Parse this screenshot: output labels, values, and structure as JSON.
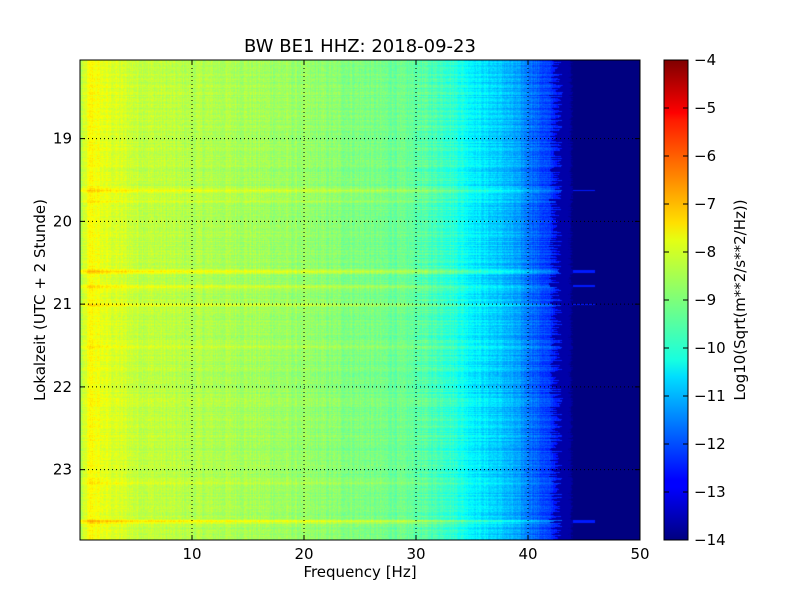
{
  "chart_data": {
    "type": "heatmap",
    "title": "BW BE1 HHZ: 2018-09-23",
    "xlabel": "Frequency [Hz]",
    "ylabel": "Lokalzeit (UTC + 2 Stunde)",
    "colorbar_label": "Log10(Sqrt(m**2/s**2/Hz))",
    "colormap": "jet",
    "xlim": [
      0,
      50
    ],
    "ylim": [
      18.05,
      23.85
    ],
    "y_inverted": true,
    "clim": [
      -14,
      -4
    ],
    "grid": true,
    "x_ticks": [
      10,
      20,
      30,
      40,
      50
    ],
    "y_ticks": [
      19,
      20,
      21,
      22,
      23
    ],
    "colorbar_ticks": [
      -4,
      -5,
      -6,
      -7,
      -8,
      -9,
      -10,
      -11,
      -12,
      -13,
      -14
    ],
    "spectrum_profile": {
      "frequency_hz": [
        0,
        1,
        2,
        5,
        10,
        15,
        20,
        25,
        30,
        33,
        35,
        38,
        40,
        42,
        43.5,
        44,
        45,
        50
      ],
      "level": [
        -8.6,
        -7.7,
        -8.0,
        -8.3,
        -8.5,
        -8.6,
        -8.8,
        -9.0,
        -9.3,
        -9.7,
        -10.3,
        -10.9,
        -11.5,
        -12.3,
        -13.0,
        -14.0,
        -14.0,
        -14.0
      ]
    },
    "bright_bands": [
      {
        "time_h": 19.62,
        "delta": 0.5
      },
      {
        "time_h": 19.75,
        "delta": 0.4
      },
      {
        "time_h": 20.6,
        "delta": 0.7
      },
      {
        "time_h": 20.78,
        "delta": 0.6
      },
      {
        "time_h": 21.0,
        "delta": 0.5
      },
      {
        "time_h": 21.5,
        "delta": 0.3
      },
      {
        "time_h": 23.15,
        "delta": 0.3
      },
      {
        "time_h": 23.62,
        "delta": 0.9
      }
    ]
  }
}
